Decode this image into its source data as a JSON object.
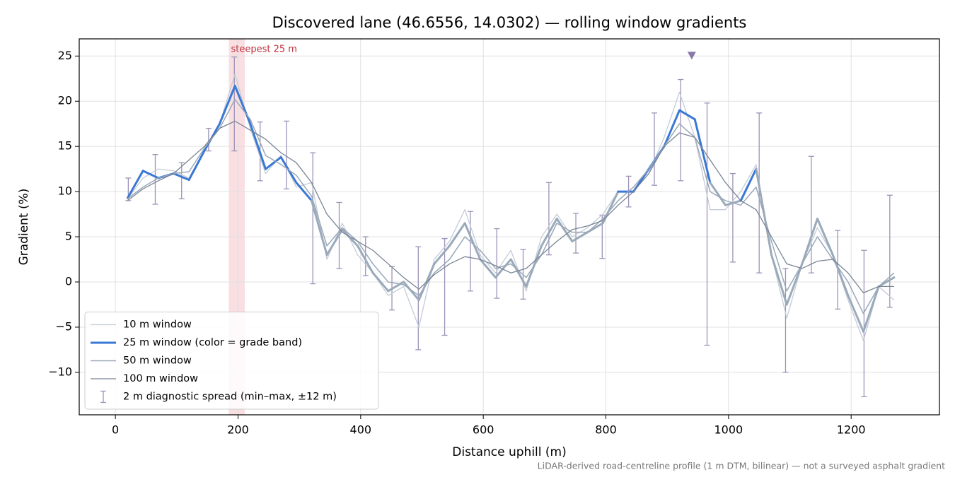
{
  "chart_data": {
    "type": "line",
    "title": "Discovered lane (46.6556, 14.0302) — rolling window gradients",
    "x_label": "Distance uphill (m)",
    "y_label": "Gradient (%)",
    "footnote": "LiDAR-derived road-centreline profile (1 m DTM, bilinear) — not a surveyed asphalt gradient",
    "xlim": [
      -59,
      1344
    ],
    "ylim": [
      -14.7,
      26.9
    ],
    "xticks": [
      0,
      200,
      400,
      600,
      800,
      1000,
      1200
    ],
    "yticks": [
      {
        "value": -10,
        "label": "−10"
      },
      {
        "value": -5,
        "label": "−5"
      },
      0,
      5,
      10,
      15,
      20,
      25
    ],
    "grid": true,
    "legend": "lower left",
    "x": [
      20,
      45,
      70,
      95,
      120,
      145,
      170,
      195,
      220,
      245,
      270,
      295,
      320,
      345,
      370,
      395,
      420,
      445,
      470,
      495,
      520,
      545,
      570,
      595,
      620,
      645,
      670,
      695,
      720,
      745,
      770,
      795,
      820,
      845,
      870,
      895,
      920,
      945,
      970,
      995,
      1020,
      1045,
      1070,
      1095,
      1120,
      1145,
      1170,
      1195,
      1220,
      1245,
      1270
    ],
    "series": [
      {
        "name": "10 m window",
        "color": "#c3ccd6",
        "width": 1.3,
        "values": [
          9.2,
          11.5,
          12.5,
          12.3,
          11.5,
          14.5,
          17.5,
          23,
          17,
          12,
          14,
          10.5,
          11,
          2.5,
          6.5,
          3,
          1,
          -1.5,
          -0.5,
          -5,
          2.5,
          4.5,
          8,
          3,
          1,
          3.5,
          -1,
          5,
          7.5,
          5,
          6,
          7.5,
          10,
          10,
          12,
          16,
          21,
          16,
          8,
          8,
          10,
          13,
          3,
          -4,
          2,
          6,
          3,
          -2,
          -6.5,
          -0.5,
          -2
        ]
      },
      {
        "name": "25 m window (color = grade band)",
        "color": "#3a78d4",
        "base_color": "#9aaabb",
        "width": 3,
        "band_colors": [
          {
            "from": 10,
            "color": "#3a78d4"
          },
          {
            "from": 20,
            "color": "#e8900c"
          }
        ],
        "values": [
          9.3,
          12.3,
          11.5,
          12,
          11.3,
          14.5,
          17.5,
          21.7,
          17.5,
          12.5,
          13.8,
          11,
          9,
          3,
          5.8,
          4,
          1,
          -1,
          0,
          -2,
          2,
          4,
          6.5,
          2.5,
          0.5,
          2.5,
          -0.5,
          4,
          7,
          4.5,
          5.5,
          6.5,
          10,
          10,
          12.5,
          15,
          19,
          18,
          11,
          8.5,
          9,
          12.5,
          3,
          -2.5,
          2,
          7,
          3,
          -1.5,
          -5.5,
          -0.5,
          0.5
        ]
      },
      {
        "name": "50 m window",
        "color": "#9aa8b8",
        "width": 1.5,
        "values": [
          9.2,
          10.5,
          11.5,
          12,
          12.2,
          14.8,
          17,
          20.2,
          18,
          14,
          13,
          11.8,
          9.5,
          4,
          6,
          4.5,
          2,
          0,
          -0.3,
          -1.5,
          1,
          2.5,
          5,
          3.5,
          1.5,
          2,
          0.5,
          3,
          6.5,
          5.5,
          5.5,
          7,
          9,
          10.5,
          12.5,
          15,
          17.5,
          16,
          10,
          9,
          8.5,
          10.5,
          4.5,
          -1,
          2,
          5,
          2.5,
          0,
          -3.5,
          -0.5,
          1
        ]
      },
      {
        "name": "100 m window",
        "color": "#7a8595",
        "width": 1.3,
        "values": [
          9,
          10.3,
          11.2,
          12,
          13.5,
          15,
          17,
          17.8,
          16.8,
          15.8,
          14.3,
          13.2,
          11,
          7.5,
          5.5,
          4.5,
          3.5,
          2,
          0.5,
          -0.8,
          0.8,
          2,
          2.8,
          2.5,
          1.8,
          1,
          1.5,
          3,
          4.5,
          5.8,
          6.2,
          6.8,
          8.5,
          10,
          12,
          15,
          16.5,
          16,
          13.5,
          11,
          9,
          8,
          5,
          2,
          1.5,
          2.3,
          2.5,
          1,
          -1.2,
          -0.5,
          -0.5
        ]
      }
    ],
    "spread": {
      "name": "2 m diagnostic spread (min–max, ±12 m)",
      "color": "#9d93b8",
      "x": [
        21,
        65,
        108,
        152,
        194,
        236,
        279,
        322,
        365,
        408,
        451,
        494,
        537,
        579,
        622,
        665,
        707,
        751,
        794,
        837,
        879,
        922,
        965,
        1007,
        1050,
        1093,
        1135,
        1178,
        1221,
        1263
      ],
      "low": [
        9,
        8.6,
        9.2,
        14.5,
        14.5,
        11.2,
        10.3,
        -0.2,
        1.5,
        0.7,
        -3.1,
        -7.5,
        -5.9,
        -1,
        -1.8,
        -1.9,
        3,
        3.2,
        2.6,
        8.3,
        10.7,
        11.2,
        -7,
        2.2,
        1,
        -10,
        1,
        -3,
        -12.7,
        -2.8
      ],
      "high": [
        11.5,
        14.1,
        13.2,
        17,
        24.9,
        17.7,
        17.8,
        14.3,
        8.8,
        5,
        1.7,
        3.9,
        4.8,
        7.8,
        5.9,
        3.6,
        11,
        7.6,
        7.4,
        11.7,
        18.7,
        22.4,
        19.8,
        12,
        18.7,
        1.5,
        13.9,
        5.7,
        3.5,
        9.6
      ]
    },
    "highlight": {
      "label": "steepest 25 m",
      "from": 185,
      "to": 211,
      "color": "#e05060",
      "text_color": "#c0303a"
    },
    "marker": {
      "x": 940,
      "y": 25,
      "color": "#8a78a8"
    }
  }
}
